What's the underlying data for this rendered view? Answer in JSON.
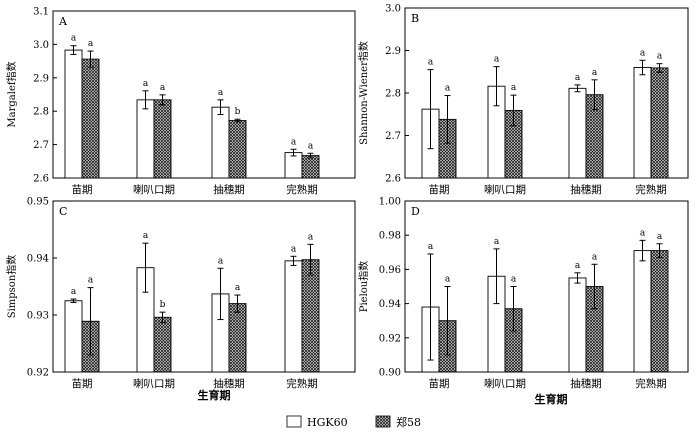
{
  "figure": {
    "xtitle": "生育期",
    "legend": [
      "HGK60",
      "郑58"
    ]
  },
  "chart_data": [
    {
      "type": "bar",
      "panel": "A",
      "ylabel": "Margalef指数",
      "categories": [
        "苗期",
        "喇叭口期",
        "抽穗期",
        "完熟期"
      ],
      "ylim": [
        2.6,
        3.1
      ],
      "yticks": [
        "2.6",
        "2.7",
        "2.8",
        "2.9",
        "3.0",
        "3.1"
      ],
      "series": [
        {
          "name": "HGK60",
          "values": [
            2.983,
            2.834,
            2.812,
            2.676
          ],
          "errors": [
            0.013,
            0.027,
            0.022,
            0.01
          ],
          "letters": [
            "a",
            "a",
            "a",
            "a"
          ]
        },
        {
          "name": "郑58",
          "values": [
            2.956,
            2.834,
            2.772,
            2.667
          ],
          "errors": [
            0.024,
            0.015,
            0.004,
            0.007
          ],
          "letters": [
            "a",
            "a",
            "b",
            "a"
          ]
        }
      ]
    },
    {
      "type": "bar",
      "panel": "B",
      "ylabel": "Shannon-Wiener指数",
      "categories": [
        "苗期",
        "喇叭口期",
        "抽穗期",
        "完熟期"
      ],
      "ylim": [
        2.6,
        3.0
      ],
      "yticks": [
        "2.6",
        "2.7",
        "2.8",
        "2.9",
        "3.0"
      ],
      "series": [
        {
          "name": "HGK60",
          "values": [
            2.762,
            2.816,
            2.811,
            2.86
          ],
          "errors": [
            0.093,
            0.046,
            0.008,
            0.017
          ],
          "letters": [
            "a",
            "a",
            "a",
            "a"
          ]
        },
        {
          "name": "郑58",
          "values": [
            2.738,
            2.759,
            2.796,
            2.859
          ],
          "errors": [
            0.056,
            0.036,
            0.035,
            0.01
          ],
          "letters": [
            "a",
            "a",
            "a",
            "a"
          ]
        }
      ]
    },
    {
      "type": "bar",
      "panel": "C",
      "ylabel": "Simpson指数",
      "categories": [
        "苗期",
        "喇叭口期",
        "抽穗期",
        "完熟期"
      ],
      "ylim": [
        0.92,
        0.95
      ],
      "yticks": [
        "0.92",
        "0.93",
        "0.94",
        "0.95"
      ],
      "series": [
        {
          "name": "HGK60",
          "values": [
            0.9325,
            0.9383,
            0.9337,
            0.9395
          ],
          "errors": [
            0.0003,
            0.0043,
            0.0045,
            0.0008
          ],
          "letters": [
            "a",
            "a",
            "a",
            "a"
          ]
        },
        {
          "name": "郑58",
          "values": [
            0.9289,
            0.9296,
            0.932,
            0.9397
          ],
          "errors": [
            0.0059,
            0.0009,
            0.0015,
            0.0027
          ],
          "letters": [
            "a",
            "b",
            "a",
            "a"
          ]
        }
      ]
    },
    {
      "type": "bar",
      "panel": "D",
      "ylabel": "Pielou指数",
      "categories": [
        "苗期",
        "喇叭口期",
        "抽穗期",
        "完熟期"
      ],
      "ylim": [
        0.9,
        1.0
      ],
      "yticks": [
        "0.90",
        "0.92",
        "0.94",
        "0.96",
        "0.98",
        "1.00"
      ],
      "series": [
        {
          "name": "HGK60",
          "values": [
            0.938,
            0.956,
            0.955,
            0.971
          ],
          "errors": [
            0.031,
            0.016,
            0.003,
            0.006
          ],
          "letters": [
            "a",
            "a",
            "a",
            "a"
          ]
        },
        {
          "name": "郑58",
          "values": [
            0.93,
            0.937,
            0.95,
            0.971
          ],
          "errors": [
            0.02,
            0.013,
            0.013,
            0.004
          ],
          "letters": [
            "a",
            "a",
            "a",
            "a"
          ]
        }
      ]
    }
  ]
}
